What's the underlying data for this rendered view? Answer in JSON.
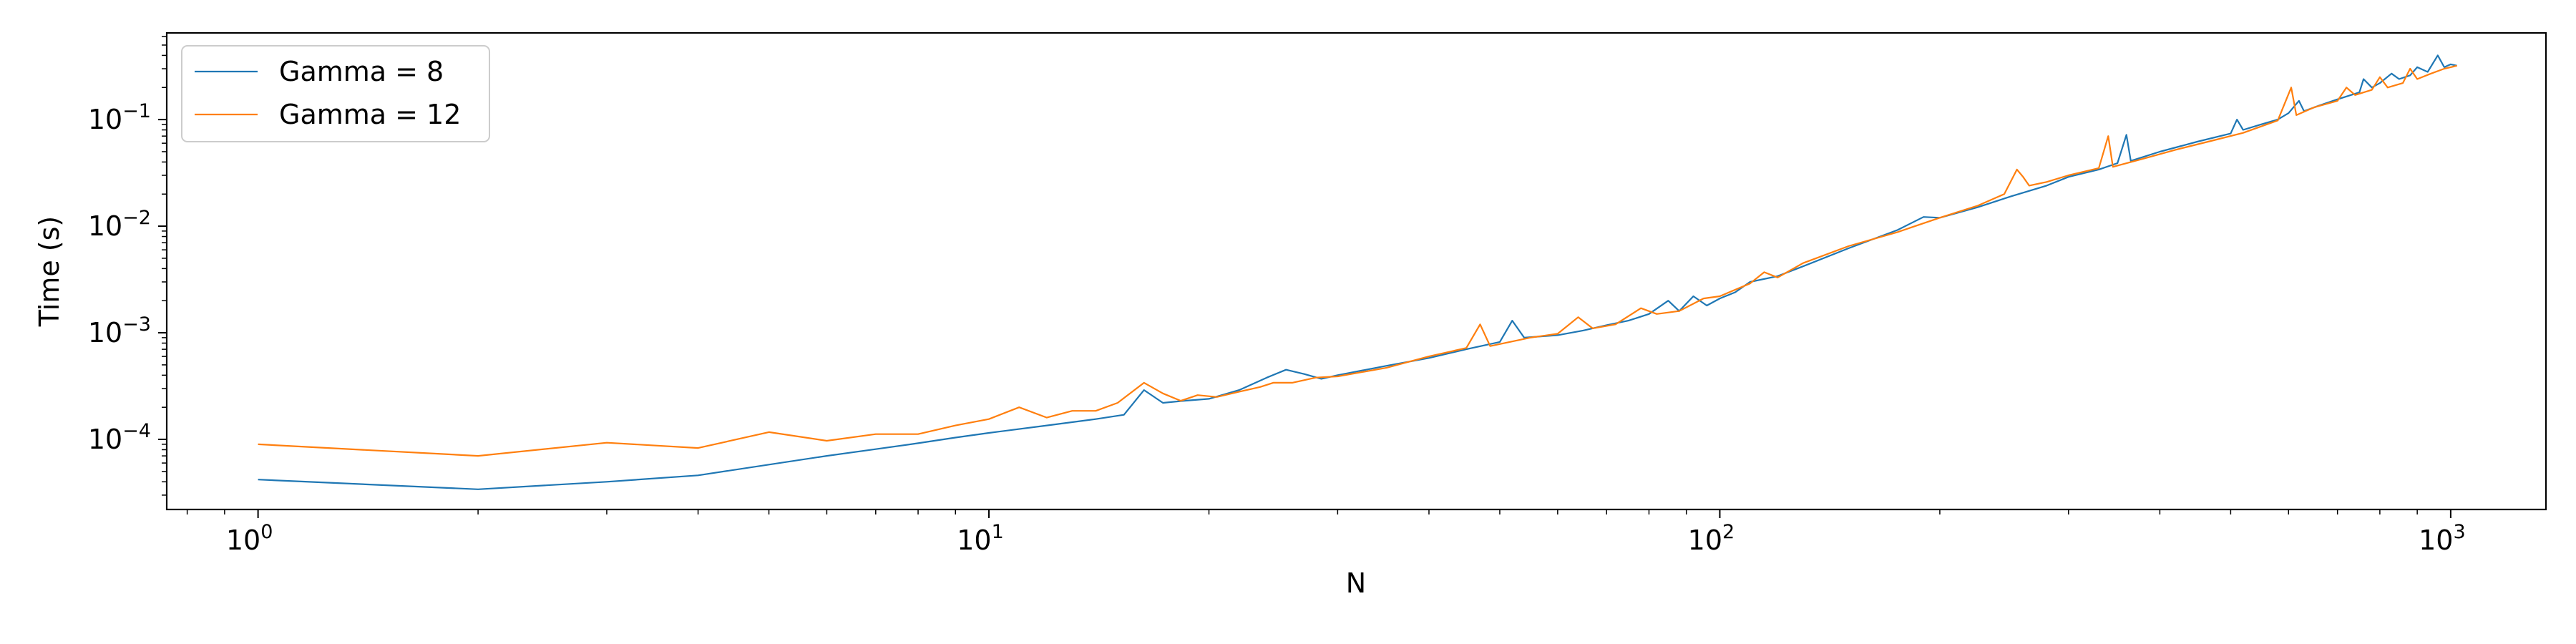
{
  "chart_data": {
    "type": "line",
    "title": "",
    "xlabel": "N",
    "ylabel": "Time (s)",
    "xscale": "log",
    "yscale": "log",
    "xlim": [
      0.75,
      1350
    ],
    "ylim": [
      2.2e-05,
      0.65
    ],
    "grid": false,
    "legend_position": "top-left",
    "x_ticks": [
      {
        "value": 1,
        "base": "10",
        "exp": "0"
      },
      {
        "value": 10,
        "base": "10",
        "exp": "1"
      },
      {
        "value": 100,
        "base": "10",
        "exp": "2"
      },
      {
        "value": 1000,
        "base": "10",
        "exp": "3"
      }
    ],
    "y_ticks": [
      {
        "value": 0.0001,
        "base": "10",
        "exp": "−4"
      },
      {
        "value": 0.001,
        "base": "10",
        "exp": "−3"
      },
      {
        "value": 0.01,
        "base": "10",
        "exp": "−2"
      },
      {
        "value": 0.1,
        "base": "10",
        "exp": "−1"
      }
    ],
    "series": [
      {
        "name": "Gamma = 8",
        "color": "#1f77b4",
        "points": [
          [
            1,
            4.2e-05
          ],
          [
            2,
            3.4e-05
          ],
          [
            3,
            4e-05
          ],
          [
            4,
            4.6e-05
          ],
          [
            5,
            5.8e-05
          ],
          [
            6,
            7e-05
          ],
          [
            7,
            8.1e-05
          ],
          [
            8,
            9.2e-05
          ],
          [
            9,
            0.000104
          ],
          [
            10,
            0.000115
          ],
          [
            12,
            0.000135
          ],
          [
            14,
            0.000155
          ],
          [
            15.3,
            0.00017
          ],
          [
            16.3,
            0.00029
          ],
          [
            17.3,
            0.00022
          ],
          [
            18.5,
            0.00023
          ],
          [
            20,
            0.00024
          ],
          [
            22,
            0.00029
          ],
          [
            24,
            0.00038
          ],
          [
            25.5,
            0.00045
          ],
          [
            27,
            0.00041
          ],
          [
            28.5,
            0.00037
          ],
          [
            30,
            0.0004
          ],
          [
            35,
            0.00049
          ],
          [
            40,
            0.00058
          ],
          [
            45,
            0.0007
          ],
          [
            50,
            0.00082
          ],
          [
            52,
            0.0013
          ],
          [
            54,
            0.0009
          ],
          [
            60,
            0.00095
          ],
          [
            65,
            0.00105
          ],
          [
            70,
            0.00118
          ],
          [
            75,
            0.0013
          ],
          [
            80,
            0.0015
          ],
          [
            85,
            0.002
          ],
          [
            88,
            0.0016
          ],
          [
            92,
            0.0022
          ],
          [
            96,
            0.0018
          ],
          [
            100,
            0.0021
          ],
          [
            105,
            0.0024
          ],
          [
            110,
            0.003
          ],
          [
            120,
            0.0034
          ],
          [
            130,
            0.0042
          ],
          [
            150,
            0.0062
          ],
          [
            175,
            0.0092
          ],
          [
            190,
            0.0122
          ],
          [
            200,
            0.012
          ],
          [
            225,
            0.015
          ],
          [
            250,
            0.019
          ],
          [
            280,
            0.024
          ],
          [
            300,
            0.029
          ],
          [
            330,
            0.034
          ],
          [
            350,
            0.039
          ],
          [
            360,
            0.072
          ],
          [
            365,
            0.041
          ],
          [
            400,
            0.05
          ],
          [
            450,
            0.062
          ],
          [
            500,
            0.074
          ],
          [
            510,
            0.1
          ],
          [
            520,
            0.08
          ],
          [
            550,
            0.09
          ],
          [
            580,
            0.1
          ],
          [
            600,
            0.115
          ],
          [
            620,
            0.15
          ],
          [
            630,
            0.12
          ],
          [
            660,
            0.135
          ],
          [
            700,
            0.155
          ],
          [
            750,
            0.18
          ],
          [
            760,
            0.24
          ],
          [
            780,
            0.2
          ],
          [
            800,
            0.22
          ],
          [
            830,
            0.27
          ],
          [
            850,
            0.24
          ],
          [
            880,
            0.26
          ],
          [
            900,
            0.31
          ],
          [
            930,
            0.28
          ],
          [
            960,
            0.4
          ],
          [
            980,
            0.31
          ],
          [
            1000,
            0.33
          ],
          [
            1020,
            0.32
          ]
        ]
      },
      {
        "name": "Gamma = 12",
        "color": "#ff7f0e",
        "points": [
          [
            1,
            9e-05
          ],
          [
            2,
            7e-05
          ],
          [
            3,
            9.3e-05
          ],
          [
            4,
            8.3e-05
          ],
          [
            5,
            0.000117
          ],
          [
            6,
            9.7e-05
          ],
          [
            7,
            0.000112
          ],
          [
            8,
            0.000112
          ],
          [
            9,
            0.000135
          ],
          [
            10,
            0.000155
          ],
          [
            11,
            0.0002
          ],
          [
            12,
            0.00016
          ],
          [
            13,
            0.000185
          ],
          [
            14,
            0.000185
          ],
          [
            15,
            0.00022
          ],
          [
            16.3,
            0.00034
          ],
          [
            17.3,
            0.00027
          ],
          [
            18.3,
            0.00023
          ],
          [
            19.3,
            0.00026
          ],
          [
            20.5,
            0.00025
          ],
          [
            22,
            0.00028
          ],
          [
            23.5,
            0.00031
          ],
          [
            24.5,
            0.00034
          ],
          [
            26,
            0.00034
          ],
          [
            28,
            0.00038
          ],
          [
            30,
            0.00039
          ],
          [
            35,
            0.00047
          ],
          [
            40,
            0.0006
          ],
          [
            45,
            0.00072
          ],
          [
            47,
            0.0012
          ],
          [
            48.5,
            0.00075
          ],
          [
            55,
            0.0009
          ],
          [
            60,
            0.00098
          ],
          [
            64,
            0.0014
          ],
          [
            67,
            0.0011
          ],
          [
            72,
            0.0012
          ],
          [
            78,
            0.0017
          ],
          [
            82,
            0.0015
          ],
          [
            88,
            0.0016
          ],
          [
            95,
            0.0021
          ],
          [
            100,
            0.0022
          ],
          [
            110,
            0.0029
          ],
          [
            115,
            0.0037
          ],
          [
            120,
            0.0033
          ],
          [
            130,
            0.0045
          ],
          [
            150,
            0.0065
          ],
          [
            175,
            0.0088
          ],
          [
            200,
            0.012
          ],
          [
            225,
            0.0155
          ],
          [
            245,
            0.02
          ],
          [
            255,
            0.034
          ],
          [
            260,
            0.029
          ],
          [
            265,
            0.024
          ],
          [
            280,
            0.026
          ],
          [
            300,
            0.03
          ],
          [
            330,
            0.035
          ],
          [
            340,
            0.07
          ],
          [
            345,
            0.036
          ],
          [
            380,
            0.043
          ],
          [
            420,
            0.052
          ],
          [
            470,
            0.063
          ],
          [
            520,
            0.075
          ],
          [
            580,
            0.098
          ],
          [
            605,
            0.2
          ],
          [
            615,
            0.11
          ],
          [
            650,
            0.13
          ],
          [
            700,
            0.15
          ],
          [
            720,
            0.2
          ],
          [
            740,
            0.17
          ],
          [
            780,
            0.19
          ],
          [
            800,
            0.25
          ],
          [
            820,
            0.2
          ],
          [
            860,
            0.22
          ],
          [
            880,
            0.3
          ],
          [
            900,
            0.24
          ],
          [
            940,
            0.27
          ],
          [
            980,
            0.3
          ],
          [
            1000,
            0.31
          ],
          [
            1020,
            0.32
          ]
        ]
      }
    ]
  }
}
